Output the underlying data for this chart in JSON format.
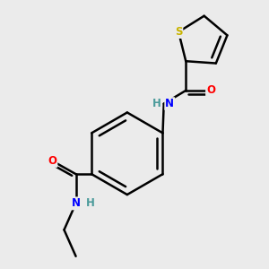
{
  "bg_color": "#ebebeb",
  "atom_colors": {
    "C": "#000000",
    "H": "#4a9a9a",
    "N": "#0000ff",
    "O": "#ff0000",
    "S": "#c8b400"
  },
  "bond_lw": 1.8,
  "figsize": [
    3.0,
    3.0
  ],
  "dpi": 100,
  "xlim": [
    -0.55,
    0.75
  ],
  "ylim": [
    -0.85,
    0.95
  ]
}
